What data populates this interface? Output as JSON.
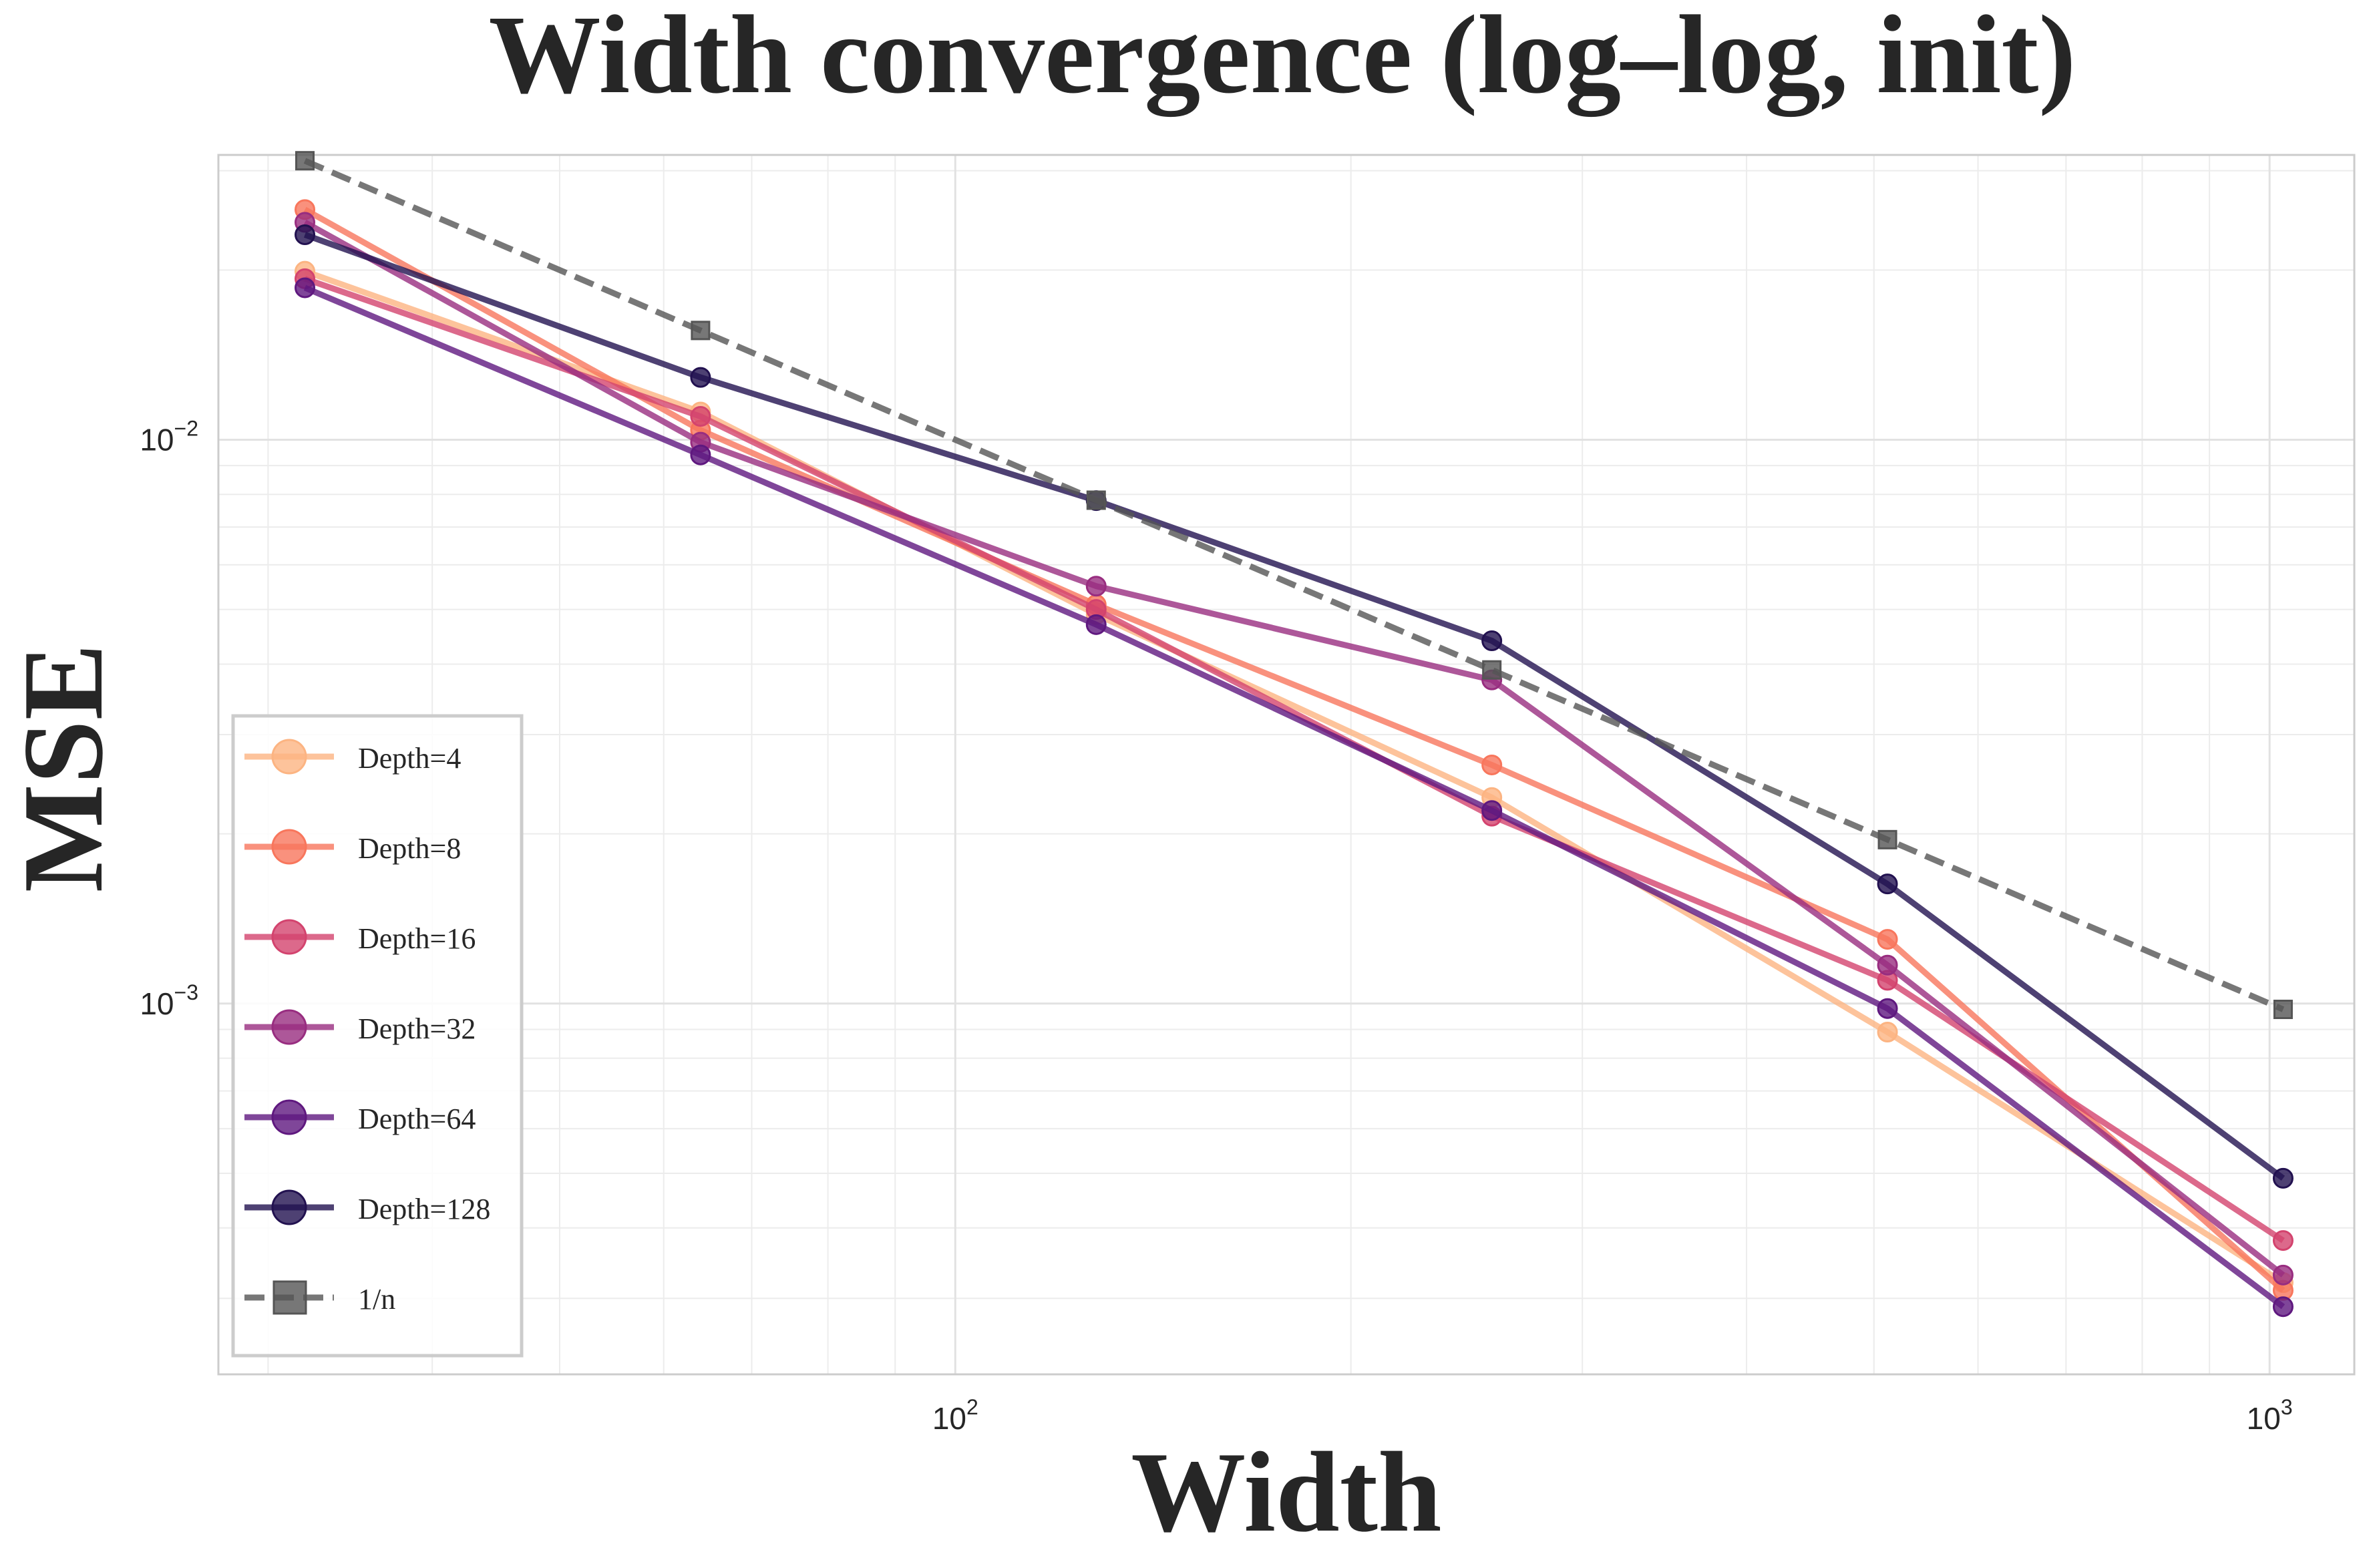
{
  "chart_data": {
    "type": "line",
    "title": "Width convergence (log–log, init)",
    "xlabel": "Width",
    "ylabel": "MSE",
    "xscale": "log",
    "yscale": "log",
    "xlim": [
      27.5,
      1160
    ],
    "ylim": [
      0.00022,
      0.032
    ],
    "grid": true,
    "legend_position": "lower-left",
    "x": [
      32,
      64,
      128,
      256,
      512,
      1024
    ],
    "x_ticks": [
      {
        "value": 100,
        "base": "10",
        "exp": "2"
      },
      {
        "value": 1000,
        "base": "10",
        "exp": "3"
      }
    ],
    "y_ticks": [
      {
        "value": 0.01,
        "base": "10",
        "exp": "−2"
      },
      {
        "value": 0.001,
        "base": "10",
        "exp": "−3"
      }
    ],
    "series": [
      {
        "name": "Depth=4",
        "color": "#fcb482",
        "marker": "circle",
        "dash": "solid",
        "values": [
          0.0199,
          0.0112,
          0.0049,
          0.00232,
          0.00089,
          0.00032
        ]
      },
      {
        "name": "Depth=8",
        "color": "#f8765c",
        "marker": "circle",
        "dash": "solid",
        "values": [
          0.0256,
          0.0104,
          0.0051,
          0.00265,
          0.0013,
          0.00031
        ]
      },
      {
        "name": "Depth=16",
        "color": "#d3436e",
        "marker": "circle",
        "dash": "solid",
        "values": [
          0.0193,
          0.011,
          0.005,
          0.00215,
          0.0011,
          0.00038
        ]
      },
      {
        "name": "Depth=32",
        "color": "#982d80",
        "marker": "circle",
        "dash": "solid",
        "values": [
          0.0243,
          0.0099,
          0.0055,
          0.00375,
          0.00117,
          0.00033
        ]
      },
      {
        "name": "Depth=64",
        "color": "#5f187f",
        "marker": "circle",
        "dash": "solid",
        "values": [
          0.0186,
          0.0094,
          0.0047,
          0.0022,
          0.00098,
          0.00029
        ]
      },
      {
        "name": "Depth=128",
        "color": "#221150",
        "marker": "circle",
        "dash": "solid",
        "values": [
          0.0231,
          0.0129,
          0.0078,
          0.0044,
          0.00163,
          0.00049
        ]
      },
      {
        "name": "1/n",
        "color": "#555555",
        "marker": "square",
        "dash": "dashed",
        "values": [
          0.03125,
          0.015625,
          0.0078125,
          0.00390625,
          0.001953125,
          0.0009765625
        ]
      }
    ]
  }
}
